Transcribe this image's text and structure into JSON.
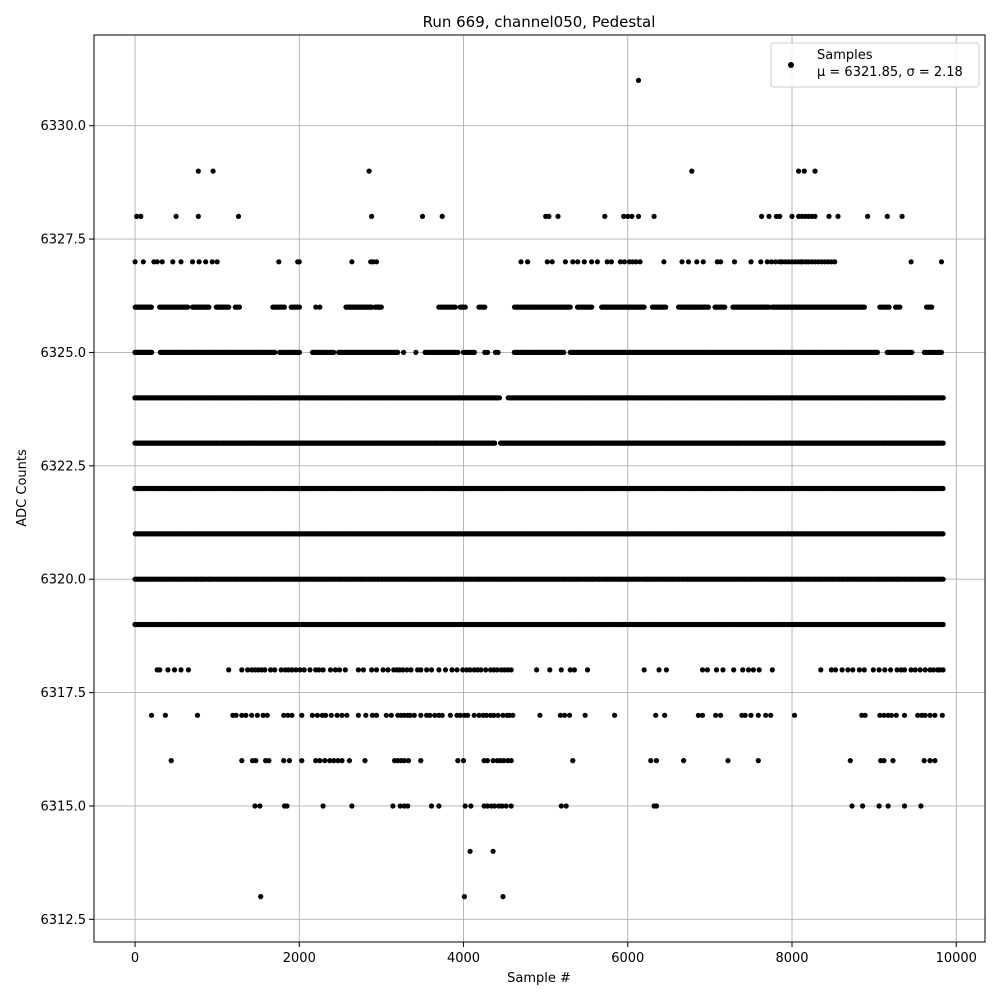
{
  "chart_data": {
    "type": "scatter",
    "title": "Run 669, channel050, Pedestal",
    "xlabel": "Sample #",
    "ylabel": "ADC Counts",
    "xlim": [
      -500,
      10350
    ],
    "ylim": [
      6312.0,
      6332.0
    ],
    "xticks": [
      0,
      2000,
      4000,
      6000,
      8000,
      10000
    ],
    "yticks": [
      6312.5,
      6315.0,
      6317.5,
      6320.0,
      6322.5,
      6325.0,
      6327.5,
      6330.0
    ],
    "grid": true,
    "legend_position": "top-right",
    "marker_color": "#000000",
    "series": [
      {
        "name": "Samples",
        "annotation": "μ = 6321.85, σ = 2.18",
        "levels": [
          {
            "y": 6331,
            "x": [
              6130
            ]
          },
          {
            "y": 6329,
            "x": [
              770,
              950,
              2850,
              6780,
              8080,
              8150,
              8280
            ]
          },
          {
            "y": 6328,
            "x": [
              20,
              70,
              500,
              770,
              1260,
              2880,
              3500,
              3740,
              5000,
              5040,
              5150,
              5720,
              5950,
              6000,
              6050,
              6130,
              6320,
              7630,
              7720,
              7810,
              7850,
              8000,
              8080,
              8120,
              8160,
              8200,
              8240,
              8280,
              8450,
              8560,
              8920,
              9160,
              9340
            ]
          },
          {
            "y": 6327,
            "x": [
              0,
              100,
              230,
              270,
              330,
              460,
              560,
              700,
              780,
              860,
              940,
              1000,
              1750,
              1980,
              2000,
              2640,
              2870,
              2900,
              2940,
              4700,
              4780,
              5020,
              5080,
              5240,
              5330,
              5390,
              5470,
              5560,
              5630,
              5750,
              5800,
              5910,
              5960,
              6020,
              6060,
              6100,
              6150,
              6440,
              6660,
              6740,
              6840,
              6920,
              7090,
              7130,
              7300,
              7500,
              7620,
              7700,
              7750,
              7800,
              7850,
              7880,
              7920,
              7960,
              8000,
              8040,
              8080,
              8110,
              8130,
              8170,
              8200,
              8240,
              8280,
              8320,
              8360,
              8400,
              8440,
              8480,
              8520,
              9450,
              9820
            ]
          }
        ],
        "bands": [
          {
            "y": 6326,
            "segments": [
              [
                0,
                200,
                16
              ],
              [
                300,
                640,
                20
              ],
              [
                700,
                900,
                16
              ],
              [
                990,
                1140,
                10
              ],
              [
                1220,
                1270,
                3
              ],
              [
                1680,
                1820,
                8
              ],
              [
                1900,
                2000,
                6
              ],
              [
                2200,
                2250,
                2
              ],
              [
                2570,
                2880,
                24
              ],
              [
                2920,
                3000,
                6
              ],
              [
                3700,
                3900,
                10
              ],
              [
                3960,
                4020,
                4
              ],
              [
                4190,
                4260,
                4
              ],
              [
                4620,
                5300,
                40
              ],
              [
                5390,
                5560,
                10
              ],
              [
                5680,
                6200,
                35
              ],
              [
                6300,
                6460,
                10
              ],
              [
                6620,
                6980,
                25
              ],
              [
                7060,
                7180,
                8
              ],
              [
                7280,
                7720,
                28
              ],
              [
                7760,
                8880,
                75
              ],
              [
                9070,
                9180,
                6
              ],
              [
                9260,
                9310,
                3
              ],
              [
                9640,
                9700,
                4
              ]
            ]
          },
          {
            "y": 6325,
            "segments": [
              [
                0,
                200,
                18
              ],
              [
                310,
                1700,
                100
              ],
              [
                1760,
                2000,
                15
              ],
              [
                2160,
                2420,
                16
              ],
              [
                2480,
                3200,
                50
              ],
              [
                3270,
                3290,
                1
              ],
              [
                3420,
                3440,
                1
              ],
              [
                3530,
                3930,
                25
              ],
              [
                4000,
                4130,
                8
              ],
              [
                4260,
                4290,
                2
              ],
              [
                4390,
                4420,
                2
              ],
              [
                4620,
                5220,
                45
              ],
              [
                5300,
                9040,
                250
              ],
              [
                9160,
                9460,
                20
              ],
              [
                9610,
                9820,
                12
              ]
            ]
          },
          {
            "y": 6324,
            "x0": 0,
            "x1": 9840,
            "n": 620,
            "gap": [
              4440,
              4540
            ]
          },
          {
            "y": 6323,
            "x0": 0,
            "x1": 9840,
            "n": 700,
            "gap": [
              4380,
              4440
            ]
          },
          {
            "y": 6322,
            "x0": 0,
            "x1": 9840,
            "n": 750
          },
          {
            "y": 6321,
            "x0": 0,
            "x1": 9840,
            "n": 750
          },
          {
            "y": 6320,
            "x0": 0,
            "x1": 9840,
            "n": 600
          },
          {
            "y": 6319,
            "x0": 0,
            "x1": 9840,
            "n": 500
          }
        ],
        "sparse_levels": [
          {
            "y": 6318,
            "x": [
              270,
              300,
              400,
              480,
              560,
              650,
              1140,
              1300,
              1370,
              1420,
              1460,
              1500,
              1540,
              1580,
              1650,
              1700,
              1780,
              1830,
              1870,
              1910,
              1960,
              2010,
              2060,
              2130,
              2200,
              2240,
              2290,
              2380,
              2440,
              2490,
              2560,
              2720,
              2780,
              2880,
              2940,
              3020,
              3080,
              3150,
              3190,
              3220,
              3260,
              3310,
              3360,
              3440,
              3480,
              3550,
              3610,
              3700,
              3780,
              3860,
              3920,
              3990,
              4040,
              4080,
              4130,
              4170,
              4210,
              4270,
              4330,
              4370,
              4410,
              4460,
              4500,
              4540,
              4580,
              4890,
              5050,
              5190,
              5300,
              5350,
              5510,
              6200,
              6380,
              6470,
              6910,
              6970,
              7080,
              7160,
              7290,
              7400,
              7470,
              7530,
              7600,
              7760,
              8350,
              8480,
              8530,
              8610,
              8680,
              8740,
              8820,
              8880,
              8990,
              9060,
              9130,
              9200,
              9280,
              9330,
              9370,
              9450,
              9500,
              9560,
              9620,
              9680,
              9720,
              9770,
              9800,
              9840
            ]
          },
          {
            "y": 6317,
            "x": [
              200,
              370,
              760,
              1190,
              1230,
              1300,
              1350,
              1420,
              1490,
              1560,
              1610,
              1810,
              1860,
              1910,
              2030,
              2160,
              2220,
              2280,
              2320,
              2390,
              2460,
              2520,
              2580,
              2720,
              2810,
              2890,
              2940,
              3060,
              3120,
              3200,
              3240,
              3280,
              3320,
              3350,
              3400,
              3480,
              3550,
              3590,
              3650,
              3700,
              3740,
              3840,
              3920,
              3960,
              4010,
              4050,
              4130,
              4190,
              4240,
              4280,
              4330,
              4370,
              4420,
              4480,
              4530,
              4560,
              4600,
              4930,
              5180,
              5230,
              5290,
              5480,
              5840,
              6340,
              6450,
              6860,
              6910,
              7070,
              7130,
              7390,
              7430,
              7500,
              7590,
              7680,
              7740,
              8030,
              8850,
              8890,
              9070,
              9120,
              9170,
              9210,
              9270,
              9370,
              9530,
              9580,
              9620,
              9680,
              9740,
              9830
            ]
          },
          {
            "y": 6316,
            "x": [
              440,
              1300,
              1430,
              1470,
              1590,
              1630,
              1810,
              1880,
              2030,
              2200,
              2250,
              2310,
              2370,
              2420,
              2470,
              2520,
              2610,
              2800,
              3160,
              3200,
              3240,
              3280,
              3330,
              3480,
              3930,
              4000,
              4250,
              4290,
              4360,
              4410,
              4450,
              4490,
              4540,
              4580,
              5330,
              6280,
              6350,
              6680,
              7220,
              7590,
              8710,
              9080,
              9120,
              9230,
              9610,
              9680,
              9740
            ]
          },
          {
            "y": 6315,
            "x": [
              1460,
              1520,
              1820,
              1850,
              2290,
              2640,
              3140,
              3230,
              3280,
              3320,
              3610,
              3700,
              4020,
              4090,
              4250,
              4290,
              4340,
              4380,
              4430,
              4470,
              4520,
              4580,
              5190,
              5250,
              6320,
              6350,
              8730,
              8860,
              9060,
              9170,
              9370,
              9570
            ]
          },
          {
            "y": 6314,
            "x": [
              4080,
              4360
            ]
          },
          {
            "y": 6313,
            "x": [
              1530,
              4010,
              4480
            ]
          }
        ]
      }
    ]
  }
}
